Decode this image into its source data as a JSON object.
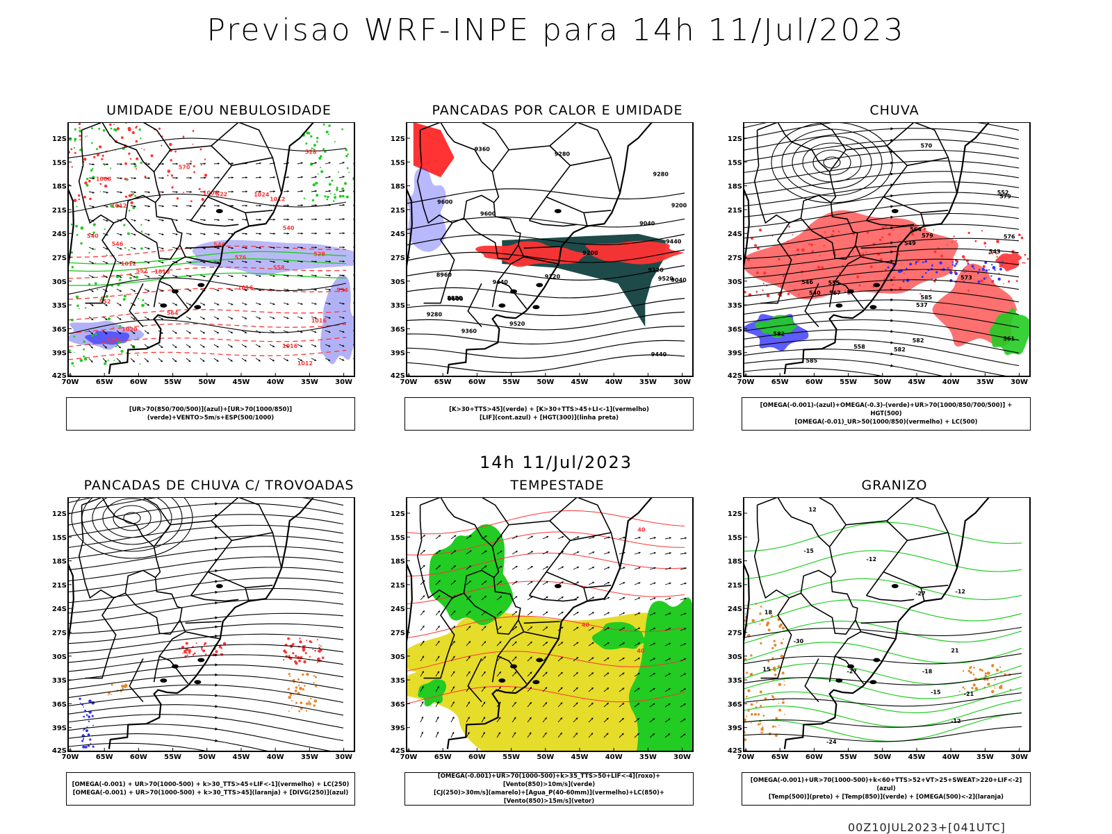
{
  "title": "Previsao WRF-INPE  para 14h 11/Jul/2023",
  "subtitle": "14h 11/Jul/2023",
  "footer": "00Z10JUL2023+[041UTC]",
  "lat_ticks": [
    "12S",
    "15S",
    "18S",
    "21S",
    "24S",
    "27S",
    "30S",
    "33S",
    "36S",
    "39S",
    "42S"
  ],
  "lon_ticks": [
    "70W",
    "65W",
    "60W",
    "55W",
    "50W",
    "45W",
    "40W",
    "35W",
    "30W"
  ],
  "colors": {
    "blue": "#3333ff",
    "light_blue": "#a8a8f5",
    "green": "#22cc22",
    "red": "#ff3333",
    "orange": "#e8862a",
    "yellow": "#e6dc2a",
    "dark_teal": "#1f4a4a",
    "black": "#000000"
  },
  "panels": [
    {
      "id": "umidade",
      "title": "UMIDADE E/OU NEBULOSIDADE",
      "legend": [
        "[UR>70(850/700/500)](azul)+[UR>70(1000/850)](verde)+VENTO>5m/s+ESP(500/1000)"
      ],
      "labels": [
        "1012",
        "1012",
        "1016",
        "1008",
        "1016",
        "1012",
        "1020",
        "1016",
        "1012",
        "1008",
        "1024",
        "1016",
        "564",
        "570",
        "576",
        "552",
        "558",
        "546",
        "540",
        "534",
        "528",
        "522",
        "540",
        "534",
        "528",
        "546",
        "552"
      ]
    },
    {
      "id": "pancadas_calor",
      "title": "PANCADAS POR CALOR E UMIDADE",
      "legend": [
        "[K>30+TTS>45](verde) + [K>30+TTS>45+LI<-1](vermelho)",
        "[LIF](cont.azul) + [HGT(300)](linha preta)"
      ],
      "labels": [
        "9600",
        "9600",
        "9600",
        "9520",
        "9520",
        "9440",
        "9440",
        "9440",
        "9360",
        "9360",
        "9280",
        "9280",
        "9200",
        "9200",
        "9120",
        "9120",
        "9040",
        "8960",
        "8880",
        "9040",
        "9280"
      ]
    },
    {
      "id": "chuva",
      "title": "CHUVA",
      "legend": [
        "[OMEGA(-0.001)-(azul)+OMEGA(-0.3)-(verde)+UR>70(1000/850/700/500)] + HGT(500)",
        "[OMEGA(-0.01)_UR>50(1000/850)(vermelho) + LC(500)"
      ],
      "labels": [
        "585",
        "582",
        "582",
        "579",
        "576",
        "573",
        "570",
        "567",
        "564",
        "561",
        "558",
        "555",
        "552",
        "549",
        "546",
        "543",
        "540",
        "537",
        "585",
        "582",
        "579"
      ]
    },
    {
      "id": "pancadas_trovoadas",
      "title": "PANCADAS DE CHUVA C/ TROVOADAS",
      "legend": [
        "[OMEGA(-0.001) + UR>70(1000-500) + k>30_TTS>45+LIF<-1](vermelho) + LC(250)",
        "[OMEGA(-0.001) + UR>70(1000-500) + k>30_TTS>45](laranja) + [DIVG(250)](azul)"
      ],
      "labels": []
    },
    {
      "id": "tempestade",
      "title": "TEMPESTADE",
      "legend": [
        "[OMEGA(-0.001)+UR>70(1000-500)+k>35_TTS>50+LIF<-4](roxo)+[Vento(850)>10m/s](verde)",
        "[CJ(250)>30m/s](amarelo)+[Agua_P(40-60mm)](vermelho)+LC(850)+[Vento(850)>15m/s](vetor)"
      ],
      "labels": [
        "40",
        "40",
        "40"
      ]
    },
    {
      "id": "granizo",
      "title": "GRANIZO",
      "legend": [
        "[OMEGA(-0.001)+UR>70(1000-500)+k<60+TTS>52+VT>25+SWEAT>220+LIF<-2](azul)",
        "[Temp(500)](preto) + [Temp(850)](verde) + [OMEGA(500)<-2](laranja)"
      ],
      "labels": [
        "-12",
        "-12",
        "-12",
        "-15",
        "-15",
        "-18",
        "-21",
        "-24",
        "-27",
        "-30",
        "-27",
        "15",
        "18",
        "21",
        "12"
      ]
    }
  ]
}
